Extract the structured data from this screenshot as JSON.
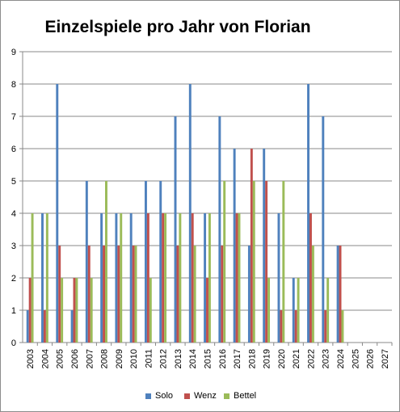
{
  "chart_data": {
    "type": "bar",
    "title": "Einzelspiele pro Jahr von Florian",
    "xlabel": "",
    "ylabel": "",
    "ylim": [
      0,
      9
    ],
    "yticks": [
      0,
      1,
      2,
      3,
      4,
      5,
      6,
      7,
      8,
      9
    ],
    "grid": true,
    "legend_position": "bottom",
    "categories": [
      "2003",
      "2004",
      "2005",
      "2006",
      "2007",
      "2008",
      "2009",
      "2010",
      "2011",
      "2012",
      "2013",
      "2014",
      "2015",
      "2016",
      "2017",
      "2018",
      "2019",
      "2020",
      "2021",
      "2022",
      "2023",
      "2024",
      "2025",
      "2026",
      "2027"
    ],
    "series": [
      {
        "name": "Solo",
        "color": "#4F81BD",
        "values": [
          1,
          4,
          8,
          1,
          5,
          4,
          4,
          4,
          5,
          5,
          7,
          8,
          4,
          7,
          6,
          3,
          6,
          4,
          2,
          8,
          7,
          3,
          0,
          0,
          0
        ]
      },
      {
        "name": "Wenz",
        "color": "#C0504D",
        "values": [
          2,
          1,
          3,
          2,
          3,
          3,
          3,
          3,
          4,
          4,
          3,
          4,
          2,
          3,
          4,
          6,
          5,
          1,
          1,
          4,
          1,
          3,
          0,
          0,
          0
        ]
      },
      {
        "name": "Bettel",
        "color": "#9BBB59",
        "values": [
          4,
          4,
          2,
          2,
          2,
          5,
          4,
          3,
          2,
          4,
          4,
          3,
          4,
          5,
          4,
          5,
          2,
          5,
          2,
          3,
          2,
          1,
          0,
          0,
          0
        ]
      }
    ]
  }
}
